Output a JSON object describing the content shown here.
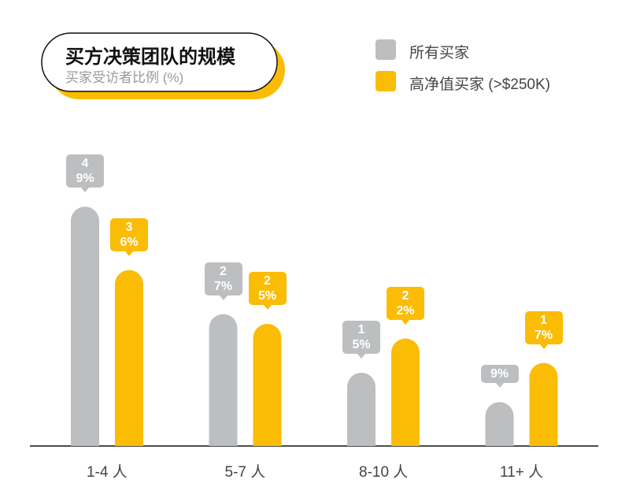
{
  "chart_data": {
    "type": "bar",
    "title": "买方决策团队的规模",
    "subtitle": "买家受访者比例 (%)",
    "categories": [
      "1-4 人",
      "5-7 人",
      "8-10 人",
      "11+ 人"
    ],
    "series": [
      {
        "name": "所有买家",
        "color": "#bcbec0",
        "values": [
          49,
          27,
          15,
          9
        ],
        "value_labels": [
          "49%",
          "27%",
          "15%",
          "9%"
        ]
      },
      {
        "name": "高净值买家 (>$250K)",
        "color": "#fbbc05",
        "values": [
          36,
          25,
          22,
          17
        ],
        "value_labels": [
          "36%",
          "25%",
          "22%",
          "17%"
        ]
      }
    ]
  }
}
